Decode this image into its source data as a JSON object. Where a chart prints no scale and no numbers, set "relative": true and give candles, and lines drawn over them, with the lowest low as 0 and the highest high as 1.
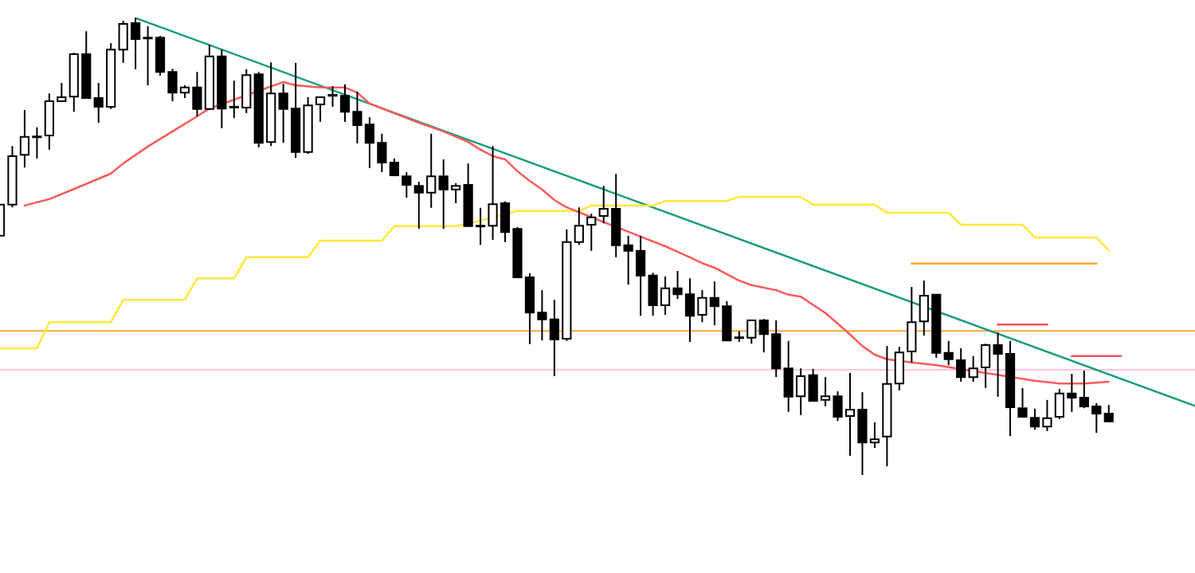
{
  "chart_data": {
    "type": "candlestick",
    "relative": true,
    "tick_labels": false,
    "categories": [
      null,
      null,
      null,
      null,
      null,
      null,
      null,
      null,
      null,
      null,
      null,
      null,
      null,
      null,
      null,
      null,
      null,
      null,
      null,
      null,
      null,
      null,
      null,
      null,
      null,
      null,
      null,
      null,
      null,
      null,
      null,
      null,
      null,
      null,
      null,
      null,
      null,
      null,
      null,
      null,
      null,
      null,
      null,
      null,
      null,
      null,
      null,
      null,
      null,
      null,
      null,
      null,
      null,
      null,
      null,
      null,
      null,
      null,
      null,
      null,
      null,
      null,
      null,
      null,
      null,
      null,
      null,
      null,
      null,
      null,
      null,
      null,
      null,
      null,
      null,
      null,
      null,
      null,
      null,
      null,
      null,
      null,
      null,
      null,
      null,
      null,
      null,
      null,
      null,
      null,
      null,
      null,
      null,
      null,
      null,
      null,
      null,
      null
    ],
    "ohlc": [
      [
        0.523,
        0.591,
        0.523,
        0.591
      ],
      [
        0.591,
        0.719,
        0.585,
        0.697
      ],
      [
        0.7,
        0.798,
        0.672,
        0.739
      ],
      [
        0.74,
        0.76,
        0.692,
        0.74
      ],
      [
        0.742,
        0.834,
        0.711,
        0.817
      ],
      [
        0.817,
        0.857,
        0.815,
        0.826
      ],
      [
        0.827,
        0.923,
        0.794,
        0.92
      ],
      [
        0.92,
        0.97,
        0.824,
        0.824
      ],
      [
        0.824,
        0.857,
        0.77,
        0.805
      ],
      [
        0.805,
        0.944,
        0.8,
        0.93
      ],
      [
        0.93,
        0.993,
        0.901,
        0.986
      ],
      [
        0.988,
        1,
        0.887,
        0.953
      ],
      [
        0.956,
        0.981,
        0.852,
        0.955
      ],
      [
        0.956,
        0.96,
        0.873,
        0.881
      ],
      [
        0.881,
        0.888,
        0.817,
        0.836
      ],
      [
        0.836,
        0.852,
        0.824,
        0.847
      ],
      [
        0.847,
        0.881,
        0.784,
        0.8
      ],
      [
        0.8,
        0.941,
        0.798,
        0.915
      ],
      [
        0.915,
        0.93,
        0.758,
        0.801
      ],
      [
        0.805,
        0.862,
        0.78,
        0.805
      ],
      [
        0.803,
        0.887,
        0.791,
        0.874
      ],
      [
        0.876,
        0.881,
        0.716,
        0.726
      ],
      [
        0.728,
        0.902,
        0.719,
        0.834
      ],
      [
        0.834,
        0.855,
        0.726,
        0.8
      ],
      [
        0.801,
        0.901,
        0.693,
        0.706
      ],
      [
        0.706,
        0.826,
        0.702,
        0.808
      ],
      [
        0.81,
        0.826,
        0.772,
        0.826
      ],
      [
        0.829,
        0.85,
        0.805,
        0.831
      ],
      [
        0.829,
        0.854,
        0.772,
        0.794
      ],
      [
        0.794,
        0.838,
        0.725,
        0.765
      ],
      [
        0.766,
        0.782,
        0.671,
        0.726
      ],
      [
        0.726,
        0.746,
        0.662,
        0.683
      ],
      [
        0.683,
        0.692,
        0.653,
        0.655
      ],
      [
        0.653,
        0.662,
        0.606,
        0.634
      ],
      [
        0.632,
        0.641,
        0.538,
        0.617
      ],
      [
        0.617,
        0.746,
        0.584,
        0.653
      ],
      [
        0.653,
        0.69,
        0.538,
        0.624
      ],
      [
        0.624,
        0.638,
        0.594,
        0.632
      ],
      [
        0.634,
        0.681,
        0.544,
        0.544
      ],
      [
        0.545,
        0.584,
        0.503,
        0.545
      ],
      [
        0.545,
        0.719,
        0.514,
        0.592
      ],
      [
        0.594,
        0.598,
        0.509,
        0.531
      ],
      [
        0.538,
        0.542,
        0.432,
        0.432
      ],
      [
        0.432,
        0.441,
        0.286,
        0.355
      ],
      [
        0.355,
        0.404,
        0.294,
        0.34
      ],
      [
        0.34,
        0.383,
        0.216,
        0.296
      ],
      [
        0.298,
        0.537,
        0.293,
        0.509
      ],
      [
        0.509,
        0.585,
        0.503,
        0.545
      ],
      [
        0.547,
        0.571,
        0.49,
        0.563
      ],
      [
        0.566,
        0.632,
        0.55,
        0.582
      ],
      [
        0.582,
        0.658,
        0.476,
        0.502
      ],
      [
        0.502,
        0.523,
        0.416,
        0.49
      ],
      [
        0.49,
        0.523,
        0.348,
        0.436
      ],
      [
        0.436,
        0.442,
        0.348,
        0.371
      ],
      [
        0.371,
        0.434,
        0.35,
        0.408
      ],
      [
        0.408,
        0.446,
        0.385,
        0.395
      ],
      [
        0.395,
        0.43,
        0.291,
        0.348
      ],
      [
        0.35,
        0.404,
        0.334,
        0.387
      ],
      [
        0.387,
        0.423,
        0.327,
        0.369
      ],
      [
        0.369,
        0.38,
        0.294,
        0.294
      ],
      [
        0.301,
        0.314,
        0.291,
        0.301
      ],
      [
        0.3,
        0.34,
        0.287,
        0.338
      ],
      [
        0.338,
        0.341,
        0.268,
        0.308
      ],
      [
        0.308,
        0.338,
        0.214,
        0.233
      ],
      [
        0.233,
        0.293,
        0.138,
        0.171
      ],
      [
        0.172,
        0.233,
        0.131,
        0.216
      ],
      [
        0.218,
        0.232,
        0.162,
        0.162
      ],
      [
        0.164,
        0.214,
        0.15,
        0.172
      ],
      [
        0.172,
        0.183,
        0.118,
        0.127
      ],
      [
        0.129,
        0.223,
        0.042,
        0.143
      ],
      [
        0.143,
        0.181,
        0,
        0.071
      ],
      [
        0.071,
        0.115,
        0.059,
        0.078
      ],
      [
        0.084,
        0.282,
        0.019,
        0.199
      ],
      [
        0.2,
        0.28,
        0.185,
        0.268
      ],
      [
        0.27,
        0.411,
        0.246,
        0.334
      ],
      [
        0.336,
        0.425,
        0.305,
        0.392
      ],
      [
        0.394,
        0.394,
        0.256,
        0.267
      ],
      [
        0.267,
        0.293,
        0.24,
        0.253
      ],
      [
        0.251,
        0.277,
        0.204,
        0.214
      ],
      [
        0.214,
        0.26,
        0.204,
        0.233
      ],
      [
        0.235,
        0.287,
        0.19,
        0.284
      ],
      [
        0.284,
        0.312,
        0.171,
        0.265
      ],
      [
        0.265,
        0.293,
        0.085,
        0.148
      ],
      [
        0.146,
        0.19,
        0.125,
        0.127
      ],
      [
        0.125,
        0.145,
        0.099,
        0.106
      ],
      [
        0.106,
        0.164,
        0.096,
        0.124
      ],
      [
        0.127,
        0.188,
        0.122,
        0.178
      ],
      [
        0.178,
        0.221,
        0.138,
        0.169
      ],
      [
        0.169,
        0.228,
        0.146,
        0.15
      ],
      [
        0.15,
        0.157,
        0.092,
        0.134
      ],
      [
        0.134,
        0.153,
        0.115,
        0.117
      ],
      null,
      null,
      null,
      null,
      null,
      null,
      null
    ],
    "series": [
      {
        "type": "line",
        "color": "#ff5a5a",
        "values": [
          null,
          null,
          0.589,
          null,
          0.603,
          null,
          0.625,
          null,
          null,
          0.659,
          0.681,
          null,
          0.718,
          null,
          0.751,
          null,
          0.784,
          0.801,
          null,
          null,
          null,
          null,
          null,
          0.859,
          0.852,
          null,
          0.847,
          null,
          0.847,
          0.836,
          0.812,
          null,
          0.791,
          null,
          0.77,
          null,
          0.751,
          null,
          0.728,
          0.711,
          0.697,
          0.69,
          0.664,
          0.643,
          0.624,
          0.601,
          0.585,
          null,
          null,
          null,
          null,
          null,
          0.521,
          null,
          0.5,
          null,
          0.476,
          0.463,
          0.453,
          null,
          0.425,
          0.415,
          null,
          0.404,
          0.394,
          0.39,
          null,
          0.354,
          0.331,
          0.307,
          0.282,
          0.263,
          0.253,
          null,
          0.246,
          null,
          0.24,
          null,
          null,
          null,
          0.223,
          null,
          null,
          null,
          0.206,
          null,
          0.2,
          null,
          0.2,
          null,
          0.204,
          null,
          null,
          null,
          null,
          null,
          null,
          null
        ]
      },
      {
        "type": "line",
        "color": "#ffe838",
        "values": [
          0.277,
          0.277,
          0.277,
          0.277,
          0.334,
          0.334,
          0.334,
          0.334,
          0.334,
          0.334,
          0.383,
          0.383,
          0.383,
          0.383,
          0.383,
          0.383,
          0.43,
          0.43,
          0.43,
          0.43,
          0.476,
          0.476,
          0.476,
          0.476,
          0.476,
          0.476,
          0.512,
          0.512,
          0.512,
          0.512,
          0.512,
          0.512,
          0.544,
          0.544,
          0.544,
          0.544,
          0.544,
          0.544,
          null,
          0.556,
          null,
          null,
          0.577,
          0.577,
          0.577,
          0.577,
          0.577,
          0.577,
          0.589,
          0.589,
          0.589,
          0.589,
          0.589,
          0.589,
          0.599,
          0.599,
          0.599,
          0.599,
          0.599,
          0.599,
          0.608,
          0.608,
          0.608,
          0.608,
          0.608,
          0.608,
          0.591,
          0.591,
          0.591,
          0.591,
          0.591,
          0.591,
          0.573,
          0.573,
          0.573,
          0.573,
          0.573,
          0.573,
          0.547,
          0.547,
          0.547,
          0.547,
          0.547,
          0.547,
          0.519,
          0.519,
          0.519,
          0.519,
          0.519,
          0.519,
          0.491,
          null,
          null,
          null,
          null,
          null,
          null,
          null
        ]
      },
      {
        "type": "line",
        "color": "#1a9e7e",
        "values": [
          null,
          null,
          null,
          null,
          null,
          null,
          null,
          null,
          null,
          null,
          null,
          0.999,
          null,
          null,
          null,
          null,
          null,
          null,
          null,
          null,
          null,
          null,
          null,
          null,
          null,
          null,
          null,
          null,
          null,
          null,
          null,
          null,
          null,
          null,
          null,
          null,
          null,
          null,
          null,
          null,
          null,
          null,
          null,
          null,
          null,
          null,
          null,
          null,
          null,
          null,
          null,
          null,
          null,
          null,
          null,
          null,
          null,
          null,
          null,
          null,
          null,
          null,
          null,
          null,
          null,
          null,
          null,
          null,
          null,
          null,
          null,
          null,
          null,
          null,
          null,
          null,
          null,
          null,
          null,
          null,
          null,
          null,
          null,
          null,
          null,
          null,
          null,
          null,
          null,
          null,
          null,
          null,
          null,
          null,
          null,
          null,
          null,
          0.151
        ]
      },
      {
        "type": "line",
        "color": "#ffa92e",
        "values": [
          null,
          null,
          null,
          null,
          null,
          null,
          null,
          null,
          null,
          null,
          null,
          null,
          null,
          null,
          null,
          null,
          null,
          null,
          null,
          null,
          null,
          null,
          null,
          null,
          null,
          null,
          null,
          null,
          null,
          null,
          null,
          null,
          null,
          null,
          null,
          null,
          null,
          null,
          null,
          null,
          null,
          null,
          null,
          null,
          null,
          null,
          null,
          null,
          null,
          null,
          null,
          null,
          null,
          null,
          null,
          null,
          null,
          null,
          null,
          null,
          null,
          null,
          null,
          null,
          null,
          null,
          null,
          null,
          null,
          null,
          null,
          null,
          null,
          null,
          0.462,
          null,
          null,
          null,
          null,
          null,
          null,
          null,
          null,
          null,
          null,
          null,
          null,
          null,
          null,
          0.462,
          null,
          null,
          null,
          null,
          null,
          null,
          null,
          null
        ]
      },
      {
        "type": "line",
        "color": "#f55060",
        "values": [
          null,
          null,
          null,
          null,
          null,
          null,
          null,
          null,
          null,
          null,
          null,
          null,
          null,
          null,
          null,
          null,
          null,
          null,
          null,
          null,
          null,
          null,
          null,
          null,
          null,
          null,
          null,
          null,
          null,
          null,
          null,
          null,
          null,
          null,
          null,
          null,
          null,
          null,
          null,
          null,
          null,
          null,
          null,
          null,
          null,
          null,
          null,
          null,
          null,
          null,
          null,
          null,
          null,
          null,
          null,
          null,
          null,
          null,
          null,
          null,
          null,
          null,
          null,
          null,
          null,
          null,
          null,
          null,
          null,
          null,
          null,
          null,
          null,
          null,
          null,
          null,
          null,
          null,
          null,
          null,
          null,
          0.329,
          null,
          null,
          null,
          0.329,
          null,
          null,
          null,
          null,
          null,
          null,
          null,
          null,
          null,
          null,
          null,
          null
        ]
      },
      {
        "type": "line",
        "color": "#f55060",
        "values": [
          null,
          null,
          null,
          null,
          null,
          null,
          null,
          null,
          null,
          null,
          null,
          null,
          null,
          null,
          null,
          null,
          null,
          null,
          null,
          null,
          null,
          null,
          null,
          null,
          null,
          null,
          null,
          null,
          null,
          null,
          null,
          null,
          null,
          null,
          null,
          null,
          null,
          null,
          null,
          null,
          null,
          null,
          null,
          null,
          null,
          null,
          null,
          null,
          null,
          null,
          null,
          null,
          null,
          null,
          null,
          null,
          null,
          null,
          null,
          null,
          null,
          null,
          null,
          null,
          null,
          null,
          null,
          null,
          null,
          null,
          null,
          null,
          null,
          null,
          null,
          null,
          null,
          null,
          null,
          null,
          null,
          null,
          null,
          null,
          null,
          null,
          null,
          0.26,
          null,
          null,
          null,
          0.26,
          null,
          null,
          null,
          null,
          null,
          null
        ]
      }
    ],
    "ref_lines": [
      {
        "axis": "y",
        "value": 0.315,
        "color": "#f7941d"
      },
      {
        "axis": "y",
        "value": 0.23,
        "color": "#ffb3c8"
      }
    ]
  }
}
